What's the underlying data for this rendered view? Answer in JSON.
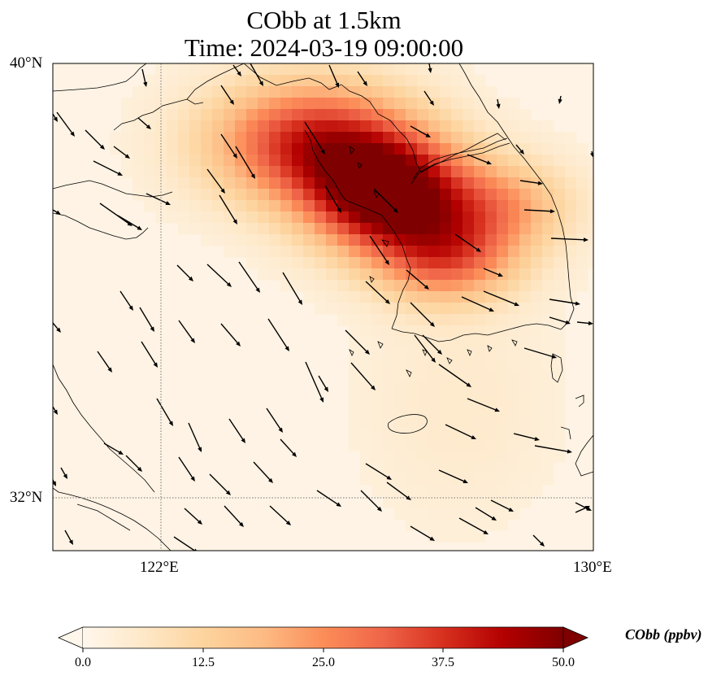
{
  "title_line1": "CObb at 1.5km",
  "title_line2": "Time: 2024-03-19 09:00:00",
  "map": {
    "lat_range": [
      30.75,
      40.0
    ],
    "lon_range": [
      120.0,
      130.0
    ],
    "lat_labels": [
      "40°N",
      "32°N"
    ],
    "lon_labels": [
      "122°E",
      "130°E"
    ],
    "gridline_lat": 32,
    "gridline_lon": 122,
    "colormap": "OrRd",
    "plume": [
      {
        "lon": 126.2,
        "lat": 37.5,
        "value": 50,
        "sigma_lon": 1.0,
        "sigma_lat": 0.75
      },
      {
        "lon": 124.8,
        "lat": 38.5,
        "value": 36,
        "sigma_lon": 1.3,
        "sigma_lat": 0.8
      },
      {
        "lon": 127.3,
        "lat": 36.3,
        "value": 26,
        "sigma_lon": 0.9,
        "sigma_lat": 0.6
      },
      {
        "lon": 128.3,
        "lat": 37.3,
        "value": 18,
        "sigma_lon": 0.9,
        "sigma_lat": 0.6
      }
    ],
    "wind_direction": "northwest"
  },
  "colorbar": {
    "label": "CObb (ppbv)",
    "min": 0.0,
    "max": 50.0,
    "ticks": [
      "0.0",
      "12.5",
      "25.0",
      "37.5",
      "50.0"
    ],
    "extend": "both"
  }
}
